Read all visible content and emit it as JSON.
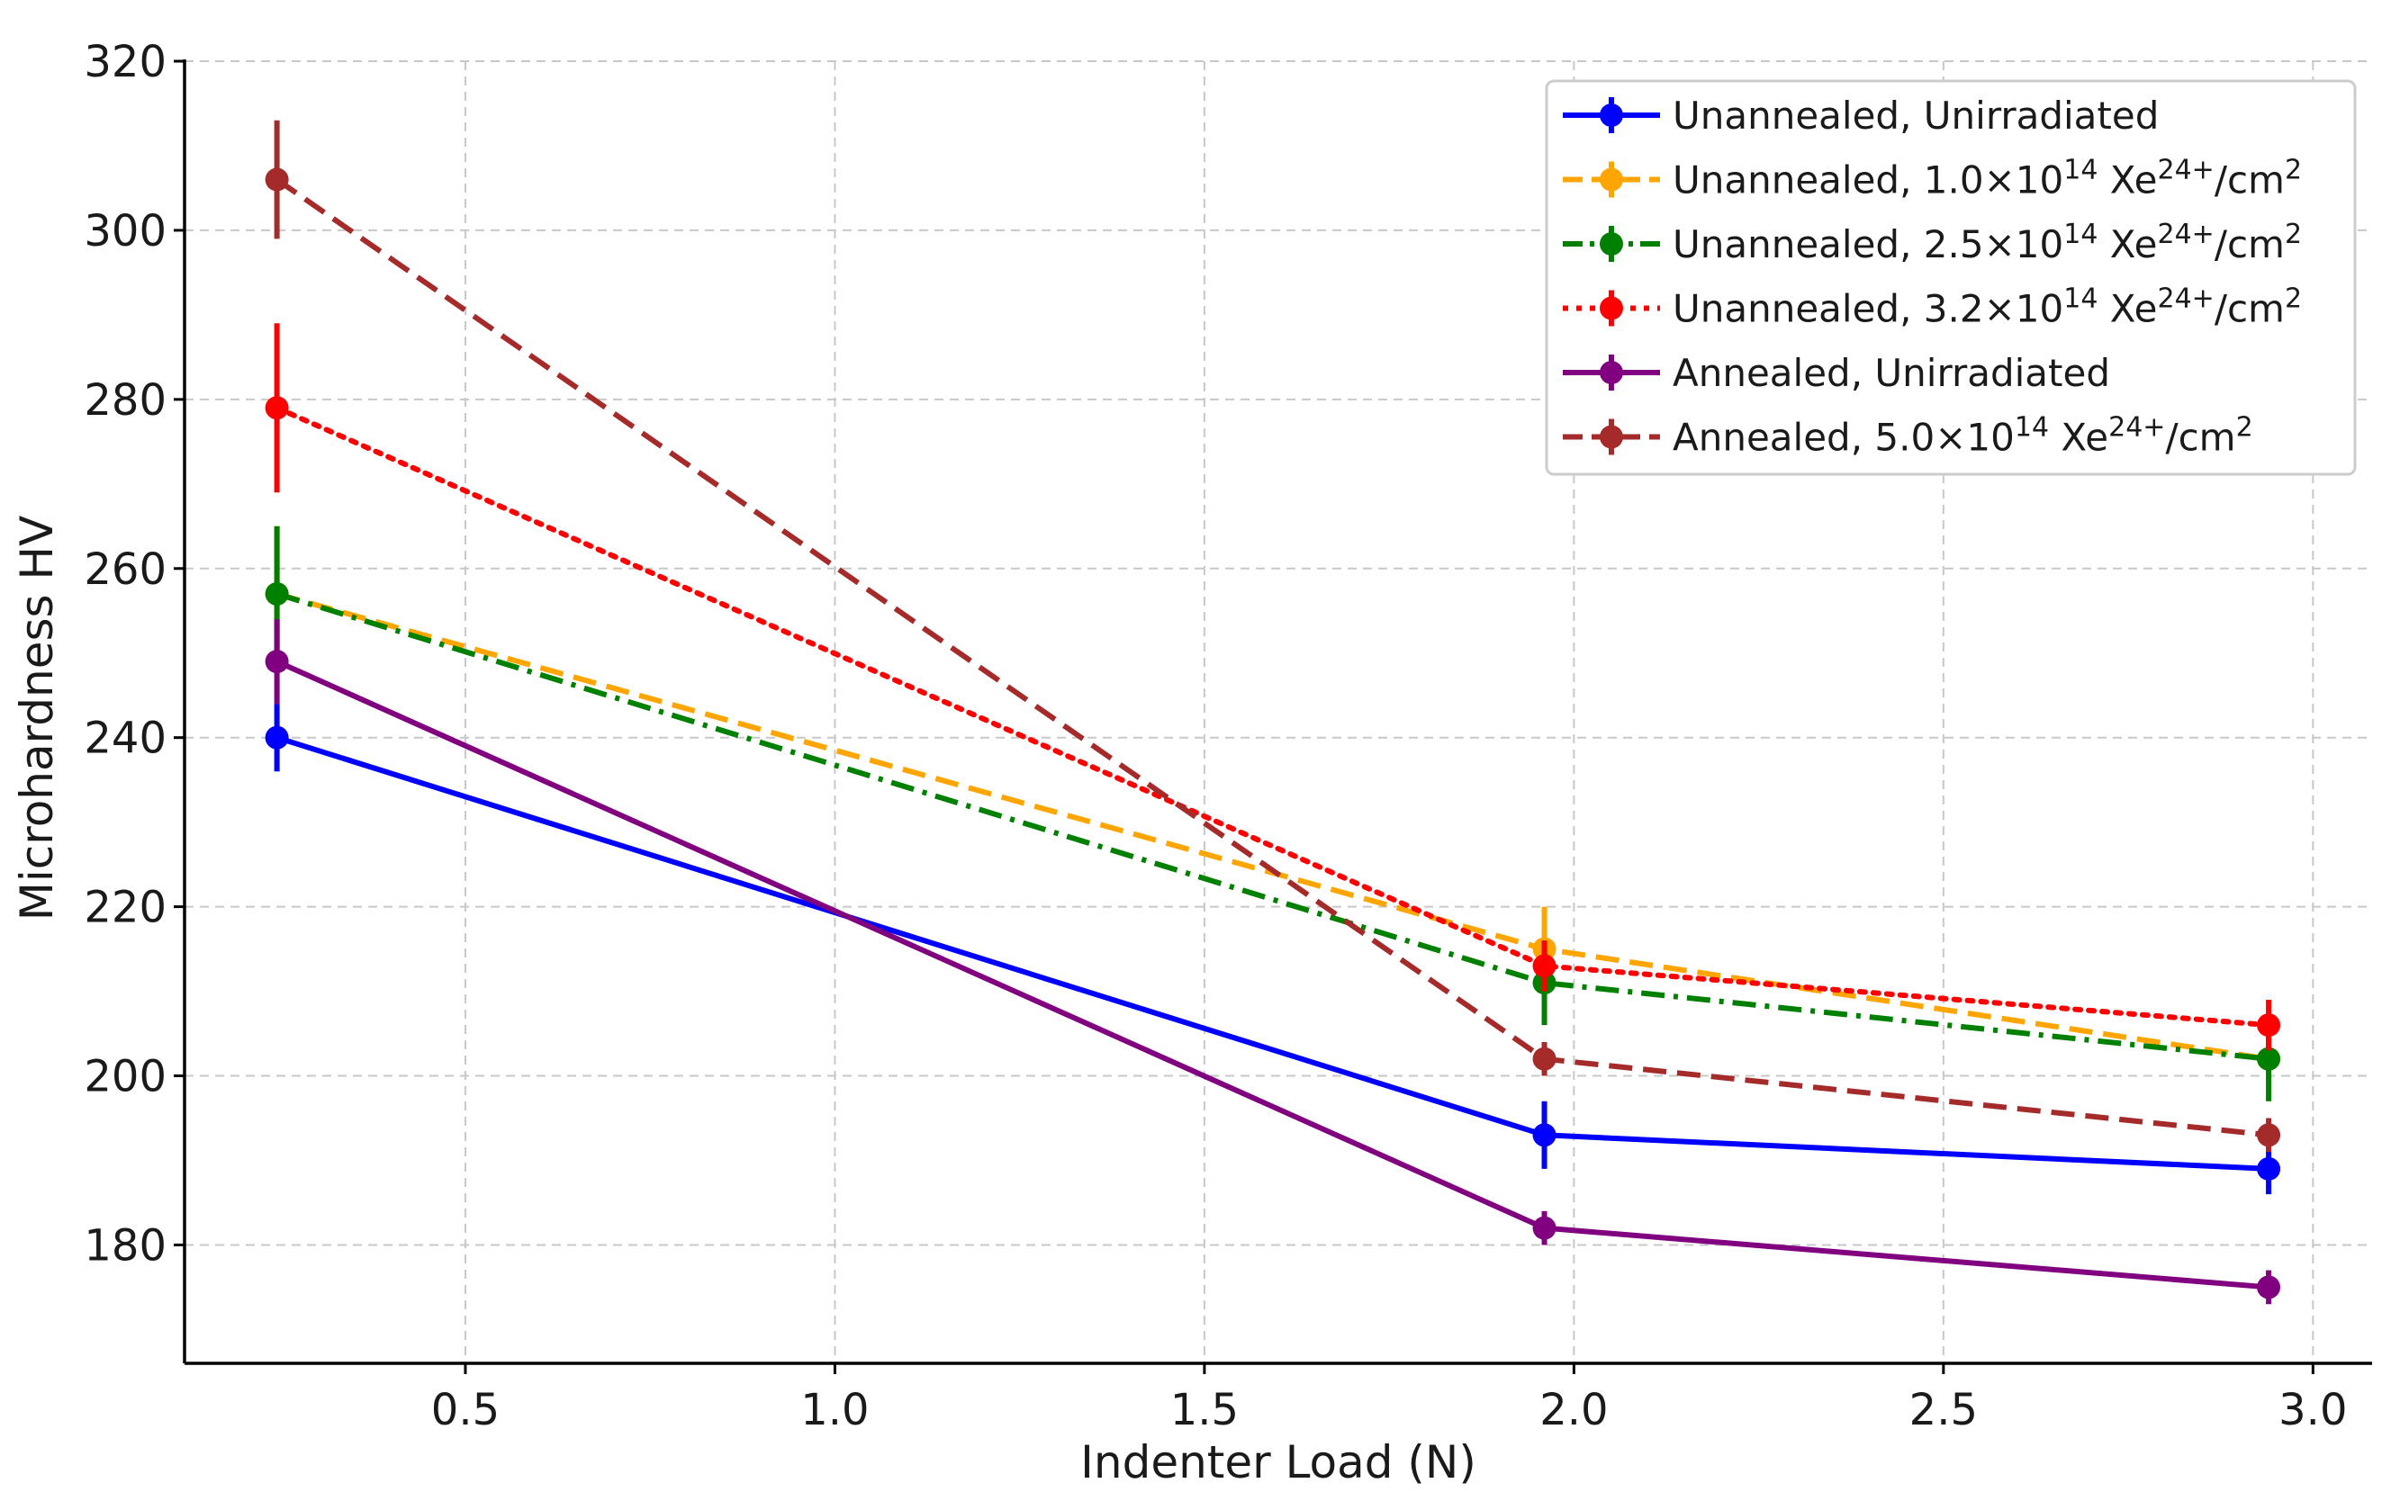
{
  "chart_data": {
    "type": "line",
    "title": "",
    "xlabel": "Indenter Load (N)",
    "ylabel": "Microhardness HV",
    "xlim": [
      0.12,
      3.08
    ],
    "ylim": [
      166,
      320
    ],
    "xticks": [
      0.5,
      1.0,
      1.5,
      2.0,
      2.5,
      3.0
    ],
    "xtick_labels": [
      "0.5",
      "1.0",
      "1.5",
      "2.0",
      "2.5",
      "3.0"
    ],
    "yticks": [
      180,
      200,
      220,
      240,
      260,
      280,
      300,
      320
    ],
    "ytick_labels": [
      "180",
      "200",
      "220",
      "240",
      "260",
      "280",
      "300",
      "320"
    ],
    "grid": true,
    "legend_position": "top-right",
    "x": [
      0.245,
      1.96,
      2.94
    ],
    "series": [
      {
        "name": "Unannealed, Unirradiated",
        "label": {
          "prefix": "Unannealed, Unirradiated",
          "fluence": "",
          "exponent": "",
          "ion": "",
          "charge": "",
          "unit": "",
          "unit_exp": ""
        },
        "values": [
          240,
          193,
          189
        ],
        "errors": [
          4,
          4,
          3
        ],
        "color": "#0000ff",
        "linestyle": "solid"
      },
      {
        "name": "Unannealed, 1.0×10^14 Xe^24+/cm^2",
        "label": {
          "prefix": "Unannealed, ",
          "fluence": "1.0×10",
          "exponent": "14",
          "ion": " Xe",
          "charge": "24+",
          "unit": "/cm",
          "unit_exp": "2"
        },
        "values": [
          257,
          215,
          202
        ],
        "errors": [
          8,
          5,
          5
        ],
        "color": "#ffa500",
        "linestyle": "dashed"
      },
      {
        "name": "Unannealed, 2.5×10^14 Xe^24+/cm^2",
        "label": {
          "prefix": "Unannealed, ",
          "fluence": "2.5×10",
          "exponent": "14",
          "ion": " Xe",
          "charge": "24+",
          "unit": "/cm",
          "unit_exp": "2"
        },
        "values": [
          257,
          211,
          202
        ],
        "errors": [
          8,
          5,
          5
        ],
        "color": "#008000",
        "linestyle": "dashdot"
      },
      {
        "name": "Unannealed, 3.2×10^14 Xe^24+/cm^2",
        "label": {
          "prefix": "Unannealed, ",
          "fluence": "3.2×10",
          "exponent": "14",
          "ion": " Xe",
          "charge": "24+",
          "unit": "/cm",
          "unit_exp": "2"
        },
        "values": [
          279,
          213,
          206
        ],
        "errors": [
          10,
          3,
          3
        ],
        "color": "#ff0000",
        "linestyle": "dotted"
      },
      {
        "name": "Annealed, Unirradiated",
        "label": {
          "prefix": "Annealed, Unirradiated",
          "fluence": "",
          "exponent": "",
          "ion": "",
          "charge": "",
          "unit": "",
          "unit_exp": ""
        },
        "values": [
          249,
          182,
          175
        ],
        "errors": [
          5,
          2,
          2
        ],
        "color": "#800080",
        "linestyle": "solid"
      },
      {
        "name": "Annealed, 5.0×10^14 Xe^24+/cm^2",
        "label": {
          "prefix": "Annealed, ",
          "fluence": "5.0×10",
          "exponent": "14",
          "ion": " Xe",
          "charge": "24+",
          "unit": "/cm",
          "unit_exp": "2"
        },
        "values": [
          306,
          202,
          193
        ],
        "errors": [
          7,
          2,
          2
        ],
        "color": "#a52a2a",
        "linestyle": "dashed"
      }
    ]
  }
}
